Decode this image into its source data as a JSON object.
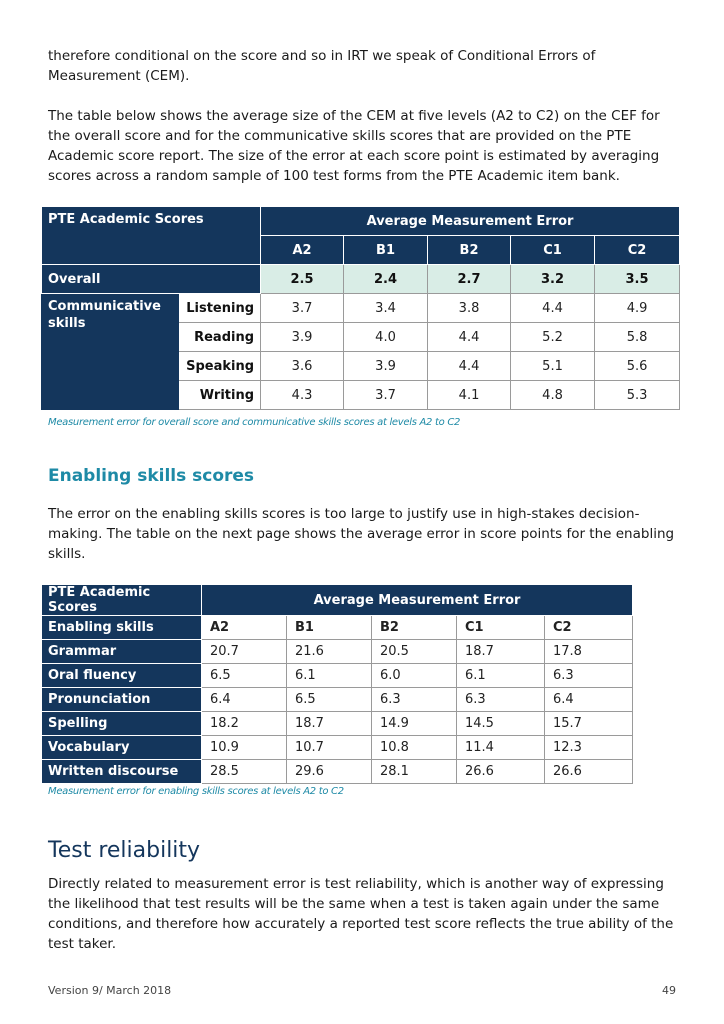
{
  "intro": {
    "para1": "therefore conditional on the score and so in IRT we speak of Conditional Errors of Measurement (CEM).",
    "para2": "The table below shows the average size of the CEM at five levels (A2 to C2) on the CEF for the overall score and for the communicative skills scores that are provided on the PTE Academic score report. The size of the error at each score point is estimated by averaging scores across a random sample of 100 test forms from the PTE Academic item bank."
  },
  "table1": {
    "corner": "PTE Academic Scores",
    "group_header": "Average Measurement Error",
    "levels": [
      "A2",
      "B1",
      "B2",
      "C1",
      "C2"
    ],
    "overall": {
      "label": "Overall",
      "values": [
        "2.5",
        "2.4",
        "2.7",
        "3.2",
        "3.5"
      ]
    },
    "group_label": "Communicative skills",
    "rows": [
      {
        "label": "Listening",
        "values": [
          "3.7",
          "3.4",
          "3.8",
          "4.4",
          "4.9"
        ]
      },
      {
        "label": "Reading",
        "values": [
          "3.9",
          "4.0",
          "4.4",
          "5.2",
          "5.8"
        ]
      },
      {
        "label": "Speaking",
        "values": [
          "3.6",
          "3.9",
          "4.4",
          "5.1",
          "5.6"
        ]
      },
      {
        "label": "Writing",
        "values": [
          "4.3",
          "3.7",
          "4.1",
          "4.8",
          "5.3"
        ]
      }
    ],
    "caption": "Measurement error for overall score and communicative skills scores at levels A2 to C2"
  },
  "enabling": {
    "heading": "Enabling skills scores",
    "para": "The error on the enabling skills scores is too large to justify use in high-stakes decision-making. The table on the next page shows the average error in score points for the enabling skills."
  },
  "table2": {
    "corner": "PTE Academic Scores",
    "group_header": "Average Measurement Error",
    "first_col_header": "Enabling skills",
    "levels": [
      "A2",
      "B1",
      "B2",
      "C1",
      "C2"
    ],
    "rows": [
      {
        "label": "Grammar",
        "values": [
          "20.7",
          "21.6",
          "20.5",
          "18.7",
          "17.8"
        ]
      },
      {
        "label": "Oral fluency",
        "values": [
          "6.5",
          "6.1",
          "6.0",
          "6.1",
          "6.3"
        ]
      },
      {
        "label": "Pronunciation",
        "values": [
          "6.4",
          "6.5",
          "6.3",
          "6.3",
          "6.4"
        ]
      },
      {
        "label": "Spelling",
        "values": [
          "18.2",
          "18.7",
          "14.9",
          "14.5",
          "15.7"
        ]
      },
      {
        "label": "Vocabulary",
        "values": [
          "10.9",
          "10.7",
          "10.8",
          "11.4",
          "12.3"
        ]
      },
      {
        "label": "Written discourse",
        "values": [
          "28.5",
          "29.6",
          "28.1",
          "26.6",
          "26.6"
        ]
      }
    ],
    "caption": "Measurement error for enabling skills scores at levels A2 to C2"
  },
  "reliability": {
    "heading": "Test reliability",
    "para": "Directly related to measurement error is test reliability, which is another way of expressing the likelihood that test results will be the same when a test is taken again under the same conditions, and therefore how accurately a reported test score reflects the true ability of the test taker."
  },
  "footer": {
    "version": "Version 9/ March 2018",
    "page_number": "49"
  }
}
